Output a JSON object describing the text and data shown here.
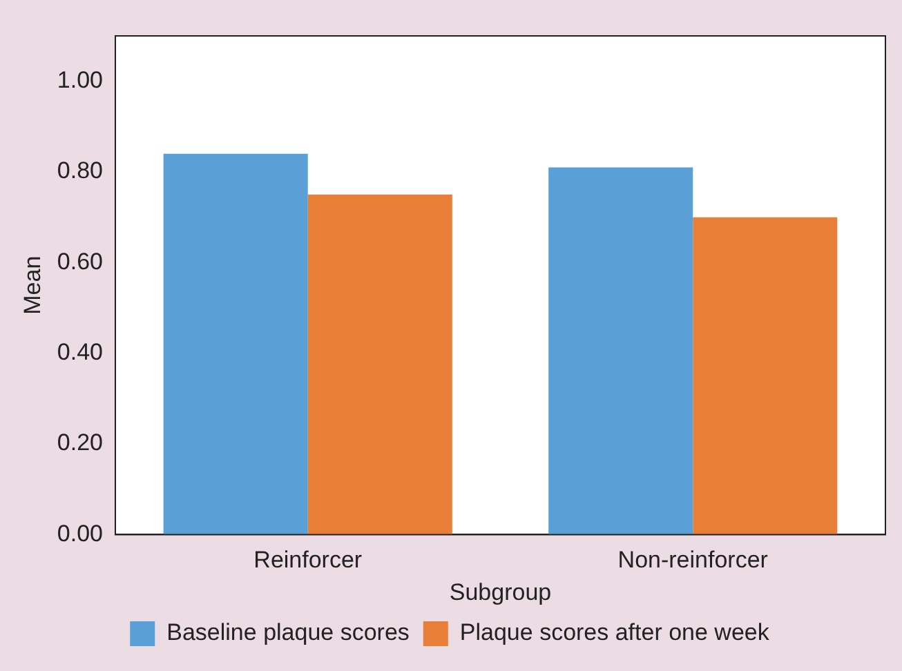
{
  "chart_data": {
    "type": "bar",
    "xlabel": "Subgroup",
    "ylabel": "Mean",
    "categories": [
      "Reinforcer",
      "Non-reinforcer"
    ],
    "series": [
      {
        "name": "Baseline plaque scores",
        "color": "#5a9fd6",
        "values": [
          0.84,
          0.81
        ]
      },
      {
        "name": "Plaque scores after one week",
        "color": "#e87f38",
        "values": [
          0.75,
          0.7
        ]
      }
    ],
    "ylim": [
      0,
      1.1
    ],
    "yticks": [
      {
        "value": 0,
        "label": "0.00"
      },
      {
        "value": 0.2,
        "label": "0.20"
      },
      {
        "value": 0.4,
        "label": "0.40"
      },
      {
        "value": 0.6,
        "label": "0.60"
      },
      {
        "value": 0.8,
        "label": "0.80"
      },
      {
        "value": 1,
        "label": "1.00"
      }
    ],
    "grid": false,
    "legend": "bottom"
  }
}
